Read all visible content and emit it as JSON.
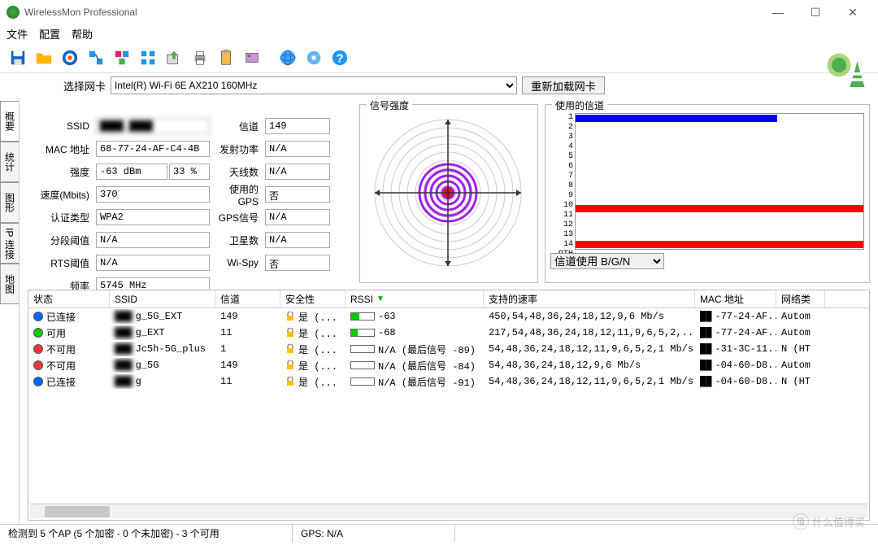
{
  "window": {
    "title": "WirelessMon Professional"
  },
  "menu": {
    "file": "文件",
    "config": "配置",
    "help": "帮助"
  },
  "toolbar_icons": [
    "save",
    "folder",
    "target",
    "net1",
    "net2",
    "net3",
    "export",
    "print",
    "clip",
    "card",
    "img1",
    "globe",
    "gear",
    "help"
  ],
  "nic": {
    "label": "选择网卡",
    "value": "Intel(R) Wi-Fi 6E AX210 160MHz",
    "reload": "重新加载网卡"
  },
  "tabs": [
    "概要",
    "统计",
    "图形",
    "IP 连接",
    "地图"
  ],
  "fields": {
    "ssid_lbl": "SSID",
    "ssid_val": "████_████",
    "mac_lbl": "MAC 地址",
    "mac_val": "68-77-24-AF-C4-4B",
    "strength_lbl": "强度",
    "strength_dbm": "-63 dBm",
    "strength_pct": "33 %",
    "speed_lbl": "速度(Mbits)",
    "speed_val": "370",
    "auth_lbl": "认证类型",
    "auth_val": "WPA2",
    "frag_lbl": "分段阈值",
    "frag_val": "N/A",
    "rts_lbl": "RTS阈值",
    "rts_val": "N/A",
    "freq_lbl": "频率",
    "freq_val": "5745 MHz",
    "chan_lbl": "信道",
    "chan_val": "149",
    "txpwr_lbl": "发射功率",
    "txpwr_val": "N/A",
    "ant_lbl": "天线数",
    "ant_val": "N/A",
    "gps_lbl": "使用的GPS",
    "gps_val": "否",
    "gpssig_lbl": "GPS信号",
    "gpssig_val": "N/A",
    "sat_lbl": "卫星数",
    "sat_val": "N/A",
    "wispy_lbl": "Wi-Spy",
    "wispy_val": "否"
  },
  "radar": {
    "title": "信号强度",
    "rings": 9,
    "inner_count": 5,
    "center_color": "#ff0000",
    "ring_color": "#a020f0",
    "outer_ring_color": "#cccccc",
    "cross_color": "#333333"
  },
  "channels": {
    "title": "使用的信道",
    "labels": [
      "1",
      "2",
      "3",
      "4",
      "5",
      "6",
      "7",
      "8",
      "9",
      "10",
      "11",
      "12",
      "13",
      "14",
      "OTH"
    ],
    "bars": [
      {
        "pct": 70,
        "color": "#0000ff"
      },
      {
        "pct": 0
      },
      {
        "pct": 0
      },
      {
        "pct": 0
      },
      {
        "pct": 0
      },
      {
        "pct": 0
      },
      {
        "pct": 0
      },
      {
        "pct": 0
      },
      {
        "pct": 0
      },
      {
        "pct": 0
      },
      {
        "pct": 100,
        "color": "#ff0000"
      },
      {
        "pct": 0
      },
      {
        "pct": 0
      },
      {
        "pct": 0
      },
      {
        "pct": 100,
        "color": "#ff0000"
      }
    ],
    "select_label": "信道使用 B/G/N"
  },
  "table": {
    "headers": {
      "status": "状态",
      "ssid": "SSID",
      "channel": "信道",
      "security": "安全性",
      "rssi": "RSSI",
      "rates": "支持的速率",
      "mac": "MAC 地址",
      "net": "网络类"
    },
    "rows": [
      {
        "status_color": "#0066ff",
        "status": "已连接",
        "ssid": "███g_5G_EXT",
        "channel": "149",
        "sec": "是 (...",
        "rssi_bar": 35,
        "rssi_fill": "#00cc00",
        "rssi_text": "-63",
        "rates": "450,54,48,36,24,18,12,9,6 Mb/s",
        "mac": "██-77-24-AF...",
        "net": "Autom"
      },
      {
        "status_color": "#00cc00",
        "status": "可用",
        "ssid": "███g_EXT",
        "channel": "11",
        "sec": "是 (...",
        "rssi_bar": 30,
        "rssi_fill": "#00cc00",
        "rssi_text": "-68",
        "rates": "217,54,48,36,24,18,12,11,9,6,5,2,...",
        "mac": "██-77-24-AF...",
        "net": "Autom"
      },
      {
        "status_color": "#ff3333",
        "status": "不可用",
        "ssid": "███Jc5h-5G_plus",
        "channel": "1",
        "sec": "是 (...",
        "rssi_bar": 0,
        "rssi_text": "N/A (最后信号 -89)",
        "rates": "54,48,36,24,18,12,11,9,6,5,2,1 Mb/s",
        "mac": "██-31-3C-11...",
        "net": "N (HT"
      },
      {
        "status_color": "#ff3333",
        "status": "不可用",
        "ssid": "███g_5G",
        "channel": "149",
        "sec": "是 (...",
        "rssi_bar": 0,
        "rssi_text": "N/A (最后信号 -84)",
        "rates": "54,48,36,24,18,12,9,6 Mb/s",
        "mac": "██-04-60-D8...",
        "net": "Autom"
      },
      {
        "status_color": "#0066ff",
        "status": "已连接",
        "ssid": "███g",
        "channel": "11",
        "sec": "是 (...",
        "rssi_bar": 0,
        "rssi_text": "N/A (最后信号 -91)",
        "rates": "54,48,36,24,18,12,11,9,6,5,2,1 Mb/s",
        "mac": "██-04-60-D8...",
        "net": "N (HT"
      }
    ]
  },
  "statusbar": {
    "left": "检测到 5 个AP (5 个加密 - 0 个未加密) - 3 个可用",
    "gps": "GPS: N/A"
  },
  "watermark": {
    "badge": "值",
    "text": "什么值得买"
  }
}
